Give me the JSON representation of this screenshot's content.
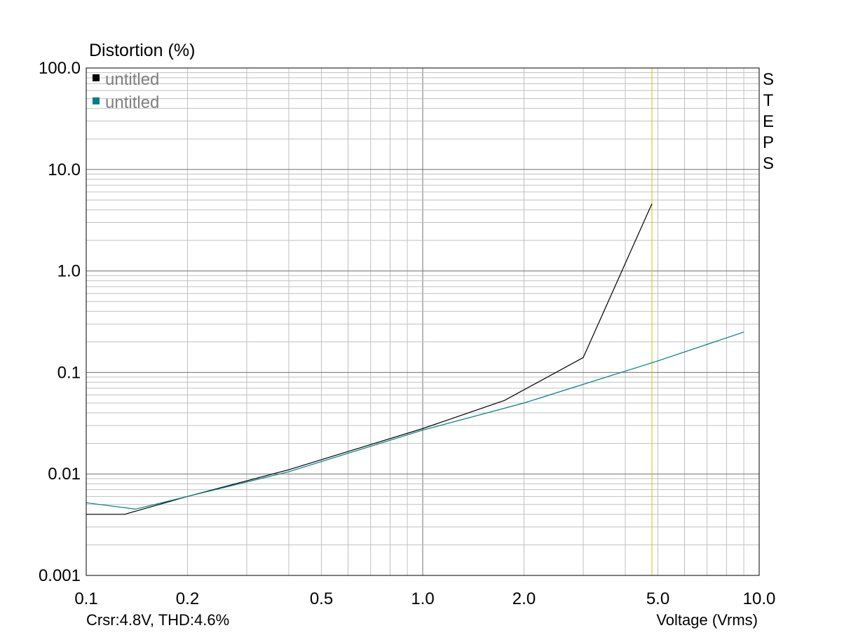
{
  "chart_data": {
    "type": "line",
    "title": "Distortion (%)",
    "xlabel": "Voltage (Vrms)",
    "ylabel": "Distortion (%)",
    "x_scale": "log",
    "y_scale": "log",
    "xlim": [
      0.1,
      10.0
    ],
    "ylim": [
      0.001,
      100.0
    ],
    "x_ticks": [
      {
        "v": 0.1,
        "label": "0.1"
      },
      {
        "v": 0.2,
        "label": "0.2"
      },
      {
        "v": 0.5,
        "label": "0.5"
      },
      {
        "v": 1.0,
        "label": "1.0"
      },
      {
        "v": 2.0,
        "label": "2.0"
      },
      {
        "v": 5.0,
        "label": "5.0"
      },
      {
        "v": 10.0,
        "label": "10.0"
      }
    ],
    "y_ticks": [
      {
        "v": 100,
        "label": "100.0"
      },
      {
        "v": 10,
        "label": "10.0"
      },
      {
        "v": 1,
        "label": "1.0"
      },
      {
        "v": 0.1,
        "label": "0.1"
      },
      {
        "v": 0.01,
        "label": "0.01"
      },
      {
        "v": 0.001,
        "label": "0.001"
      }
    ],
    "grid": true,
    "legend_position": "top-left",
    "side_label": "STEPS",
    "cursor": {
      "x": 4.8,
      "color": "#c8c800",
      "readout": "Crsr:4.8V, THD:4.6%"
    },
    "series": [
      {
        "name": "untitled",
        "color": "#000000",
        "x": [
          0.1,
          0.13,
          0.2,
          0.4,
          1.0,
          1.75,
          3.0,
          4.8
        ],
        "y": [
          0.004,
          0.004,
          0.006,
          0.011,
          0.028,
          0.053,
          0.14,
          4.6
        ]
      },
      {
        "name": "untitled",
        "color": "#008080",
        "x": [
          0.1,
          0.14,
          0.2,
          0.4,
          1.0,
          2.0,
          5.0,
          9.0
        ],
        "y": [
          0.0052,
          0.0045,
          0.006,
          0.0105,
          0.027,
          0.05,
          0.13,
          0.25
        ]
      }
    ]
  }
}
